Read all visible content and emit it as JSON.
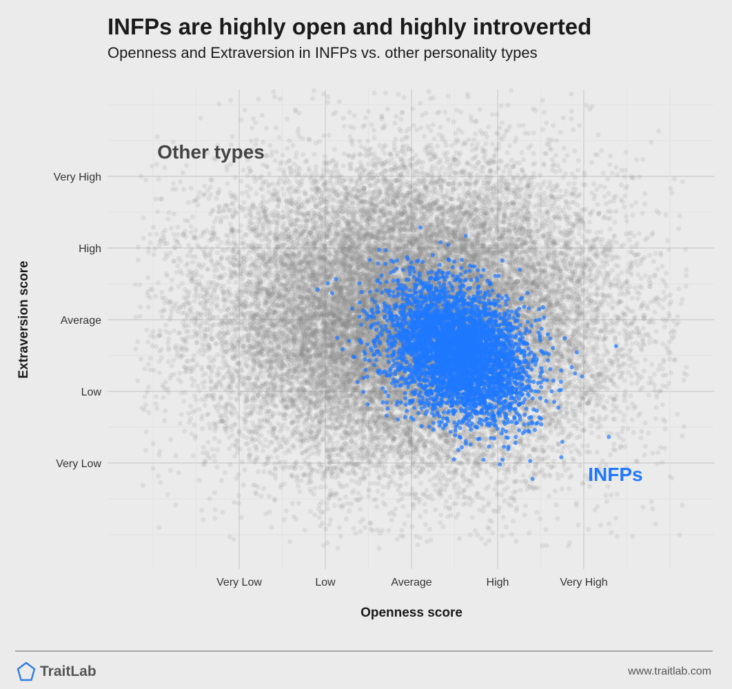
{
  "header": {
    "title": "INFPs are highly open and highly introverted",
    "subtitle": "Openness and Extraversion in INFPs vs. other personality types"
  },
  "footer": {
    "brand": "TraitLab",
    "url": "www.traitlab.com"
  },
  "colors": {
    "background": "#ebebeb",
    "grid": "#d6d6d6",
    "other_types": "#8a8a8a",
    "infp": "#1f78ff",
    "brand_icon": "#2f7de1"
  },
  "chart_data": {
    "type": "scatter",
    "title": "INFPs are highly open and highly introverted",
    "subtitle": "Openness and Extraversion in INFPs vs. other personality types",
    "xlabel": "Openness score",
    "ylabel": "Extraversion score",
    "x_ticks": [
      "Very Low",
      "Low",
      "Average",
      "High",
      "Very High"
    ],
    "y_ticks": [
      "Very Low",
      "Low",
      "Average",
      "High",
      "Very High"
    ],
    "xlim": [
      -3.0,
      3.0
    ],
    "ylim": [
      -3.0,
      3.0
    ],
    "grid": true,
    "annotations": [
      {
        "text": "Other types",
        "x": -2.95,
        "y": 2.25
      },
      {
        "text": "INFPs",
        "x": 2.05,
        "y": -2.25
      }
    ],
    "series": [
      {
        "name": "Other types",
        "label": "Other types",
        "distribution": {
          "type": "gaussian",
          "mean": [
            0,
            0
          ],
          "sd": [
            1.15,
            1.05
          ],
          "correlation": 0.0,
          "n": 24000
        }
      },
      {
        "name": "INFPs",
        "label": "INFPs",
        "distribution": {
          "type": "gaussian",
          "mean": [
            0.55,
            -0.45
          ],
          "sd": [
            0.42,
            0.48
          ],
          "correlation": -0.3,
          "n": 4200
        }
      }
    ]
  }
}
